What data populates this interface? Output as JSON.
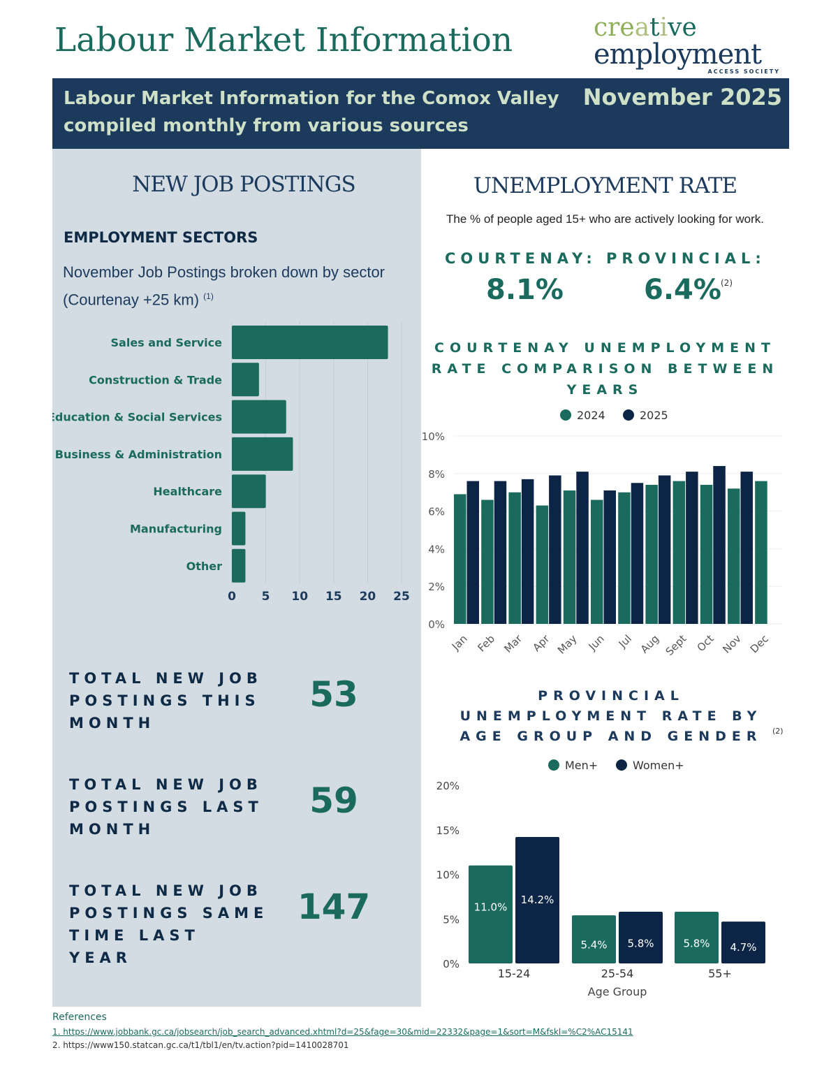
{
  "header": {
    "title": "Labour Market Information",
    "logo": {
      "line1": "creative",
      "line2": "employment",
      "line3": "ACCESS SOCIETY"
    },
    "banner_line1": "Labour Market Information for the Comox Valley",
    "banner_line2": "compiled monthly from various sources",
    "date": "November 2025"
  },
  "left": {
    "heading": "NEW JOB POSTINGS",
    "sectors_heading": "EMPLOYMENT SECTORS",
    "sectors_desc1": "November Job Postings broken down by sector",
    "sectors_desc2": "(Courtenay +25 km)",
    "sectors_ref": "(1)",
    "totals": [
      {
        "label": "TOTAL NEW JOB POSTINGS THIS MONTH",
        "value": "53"
      },
      {
        "label": "TOTAL NEW JOB POSTINGS LAST MONTH",
        "value": "59"
      },
      {
        "label": "TOTAL NEW JOB POSTINGS SAME TIME LAST YEAR",
        "value": "147"
      }
    ]
  },
  "right": {
    "heading": "UNEMPLOYMENT RATE",
    "desc": "The % of people aged 15+ who are actively looking for work.",
    "courtenay_label": "COURTENAY:",
    "courtenay_value": "8.1%",
    "provincial_label": "PROVINCIAL:",
    "provincial_value": "6.4%",
    "provincial_ref": "(2)"
  },
  "chart_data": [
    {
      "type": "bar",
      "orientation": "horizontal",
      "title": "Employment Sectors",
      "categories": [
        "Sales and Service",
        "Construction & Trade",
        "Education & Social Services",
        "Business & Administration",
        "Healthcare",
        "Manufacturing",
        "Other"
      ],
      "values": [
        23,
        4,
        8,
        9,
        5,
        2,
        2
      ],
      "xlim": [
        0,
        25
      ],
      "xticks": [
        "0",
        "5",
        "10",
        "15",
        "20",
        "25"
      ],
      "color": "#1a6b5e"
    },
    {
      "type": "bar",
      "title": "COURTENAY UNEMPLOYMENT RATE COMPARISON BETWEEN YEARS",
      "categories": [
        "Jan",
        "Feb",
        "Mar",
        "Apr",
        "May",
        "Jun",
        "Jul",
        "Aug",
        "Sept",
        "Oct",
        "Nov",
        "Dec"
      ],
      "series": [
        {
          "name": "2024",
          "color": "#1a6b5e",
          "values": [
            6.9,
            6.6,
            7.0,
            6.3,
            7.1,
            6.6,
            7.0,
            7.4,
            7.6,
            7.4,
            7.2,
            7.6
          ]
        },
        {
          "name": "2025",
          "color": "#0c2546",
          "values": [
            7.6,
            7.6,
            7.7,
            7.9,
            8.1,
            7.1,
            7.5,
            7.9,
            8.1,
            8.4,
            8.1,
            null
          ]
        }
      ],
      "ylim": [
        0,
        10
      ],
      "yticks": [
        "0%",
        "2%",
        "4%",
        "6%",
        "8%",
        "10%"
      ]
    },
    {
      "type": "bar",
      "title": "PROVINCIAL UNEMPLOYMENT RATE BY AGE GROUP AND GENDER",
      "title_ref": "(2)",
      "xlabel": "Age Group",
      "categories": [
        "15-24",
        "25-54",
        "55+"
      ],
      "series": [
        {
          "name": "Men+",
          "color": "#1a6b5e",
          "values": [
            11.0,
            5.4,
            5.8
          ],
          "labels": [
            "11.0%",
            "5.4%",
            "5.8%"
          ]
        },
        {
          "name": "Women+",
          "color": "#0c2546",
          "values": [
            14.2,
            5.8,
            4.7
          ],
          "labels": [
            "14.2%",
            "5.8%",
            "4.7%"
          ]
        }
      ],
      "ylim": [
        0,
        20
      ],
      "yticks": [
        "0%",
        "5%",
        "10%",
        "15%",
        "20%"
      ]
    }
  ],
  "references": {
    "heading": "References",
    "items": [
      "1. https://www.jobbank.gc.ca/jobsearch/job_search_advanced.xhtml?d=25&fage=30&mid=22332&page=1&sort=M&fskl=%C2%AC15141",
      "2. https://www150.statcan.gc.ca/t1/tbl1/en/tv.action?pid=1410028701"
    ]
  }
}
